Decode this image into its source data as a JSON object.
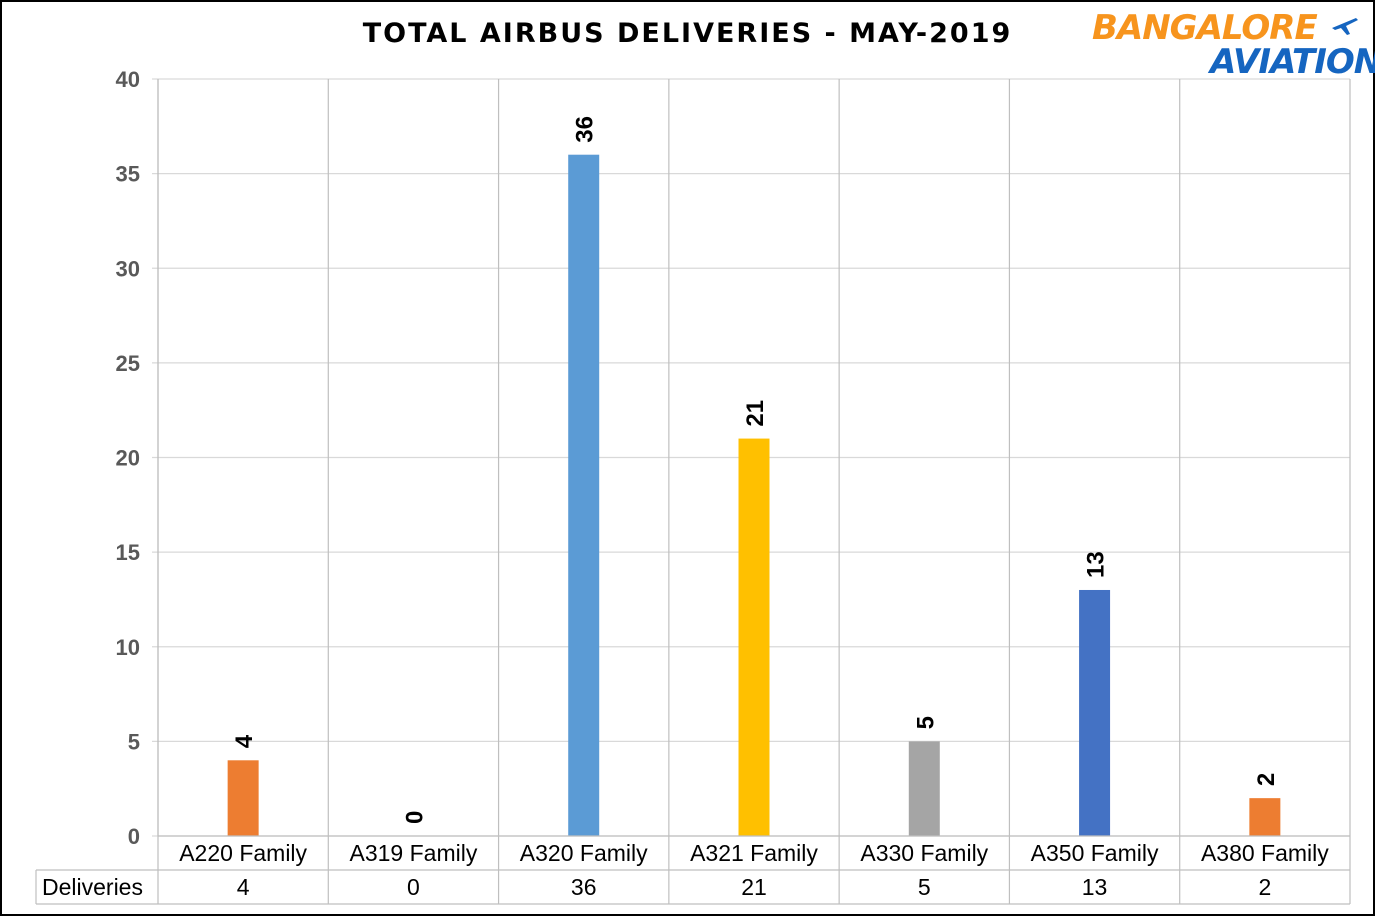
{
  "logo": {
    "line1": "BANGALORE",
    "line2": "AVIATION"
  },
  "chart_data": {
    "type": "bar",
    "title": "TOTAL AIRBUS DELIVERIES -  MAY-2019",
    "categories": [
      "A220 Family",
      "A319 Family",
      "A320 Family",
      "A321 Family",
      "A330 Family",
      "A350 Family",
      "A380 Family"
    ],
    "series": [
      {
        "name": "Deliveries",
        "values": [
          4,
          0,
          36,
          21,
          5,
          13,
          2
        ]
      }
    ],
    "colors": [
      "#ed7d31",
      "#ed7d31",
      "#5b9bd5",
      "#ffc000",
      "#a5a5a5",
      "#4472c4",
      "#ed7d31"
    ],
    "ylim": [
      0,
      40
    ],
    "yticks": [
      0,
      5,
      10,
      15,
      20,
      25,
      30,
      35,
      40
    ],
    "grid": true,
    "data_table": true,
    "xlabel": "",
    "ylabel": ""
  }
}
